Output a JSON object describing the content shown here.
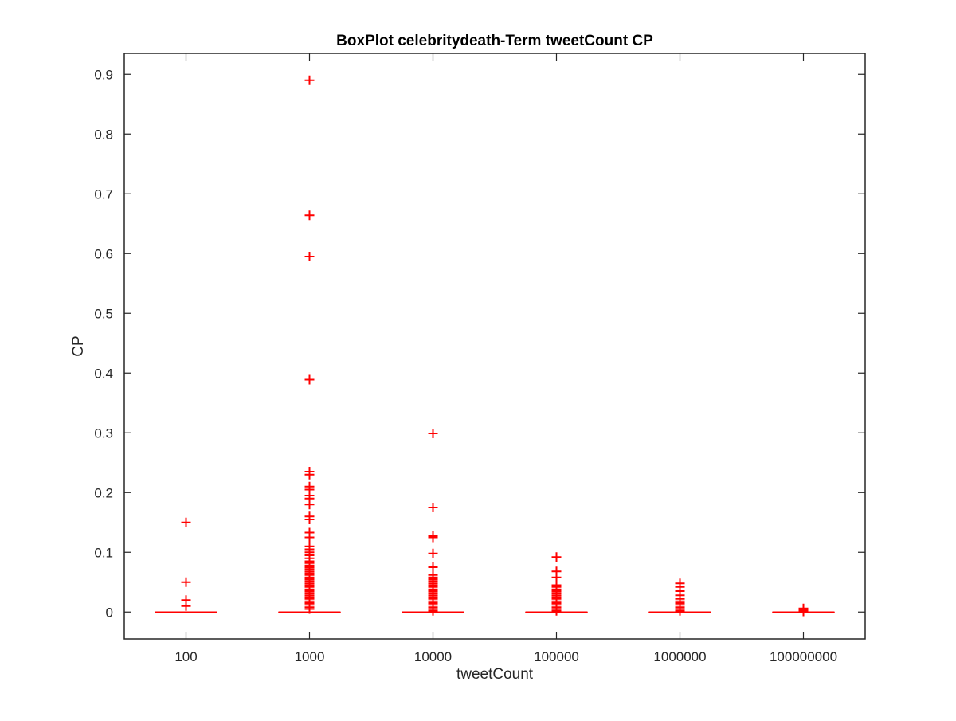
{
  "chart_data": {
    "type": "box",
    "title": "BoxPlot celebritydeath-Term tweetCount CP",
    "xlabel": "tweetCount",
    "ylabel": "CP",
    "ylim": [
      -0.045,
      0.935
    ],
    "yticks": [
      0,
      0.1,
      0.2,
      0.3,
      0.4,
      0.5,
      0.6,
      0.7,
      0.8,
      0.9
    ],
    "ytick_labels": [
      "0",
      "0.1",
      "0.2",
      "0.3",
      "0.4",
      "0.5",
      "0.6",
      "0.7",
      "0.8",
      "0.9"
    ],
    "categories": [
      "100",
      "1000",
      "10000",
      "100000",
      "1000000",
      "100000000"
    ],
    "grid": false,
    "color": "#ff0000",
    "boxes": [
      {
        "category": "100",
        "median": 0,
        "q1": 0,
        "q3": 0,
        "whisker_low": 0,
        "whisker_high": 0,
        "outliers": [
          0.15,
          0.05,
          0.02,
          0.01
        ]
      },
      {
        "category": "1000",
        "median": 0,
        "q1": 0,
        "q3": 0,
        "whisker_low": 0,
        "whisker_high": 0,
        "outliers": [
          0.89,
          0.664,
          0.595,
          0.389,
          0.235,
          0.23,
          0.21,
          0.205,
          0.195,
          0.19,
          0.18,
          0.16,
          0.155,
          0.133,
          0.125,
          0.11,
          0.105,
          0.1,
          0.095,
          0.09,
          0.085,
          0.082,
          0.078,
          0.075,
          0.072,
          0.068,
          0.065,
          0.062,
          0.058,
          0.055,
          0.052,
          0.048,
          0.045,
          0.042,
          0.038,
          0.035,
          0.032,
          0.028,
          0.025,
          0.022,
          0.018,
          0.015,
          0.012,
          0.008,
          0.005
        ]
      },
      {
        "category": "10000",
        "median": 0,
        "q1": 0,
        "q3": 0,
        "whisker_low": 0,
        "whisker_high": 0,
        "outliers": [
          0.299,
          0.175,
          0.127,
          0.125,
          0.098,
          0.075,
          0.062,
          0.058,
          0.055,
          0.052,
          0.048,
          0.045,
          0.042,
          0.038,
          0.035,
          0.032,
          0.028,
          0.025,
          0.022,
          0.018,
          0.015,
          0.012,
          0.008,
          0.005,
          0.002
        ]
      },
      {
        "category": "100000",
        "median": 0,
        "q1": 0,
        "q3": 0,
        "whisker_low": 0,
        "whisker_high": 0,
        "outliers": [
          0.092,
          0.068,
          0.058,
          0.045,
          0.042,
          0.038,
          0.035,
          0.032,
          0.028,
          0.025,
          0.022,
          0.018,
          0.015,
          0.012,
          0.008,
          0.005,
          0.002
        ]
      },
      {
        "category": "1000000",
        "median": 0,
        "q1": 0,
        "q3": 0,
        "whisker_low": 0,
        "whisker_high": 0,
        "outliers": [
          0.048,
          0.042,
          0.035,
          0.028,
          0.022,
          0.018,
          0.015,
          0.012,
          0.008,
          0.005,
          0.002
        ]
      },
      {
        "category": "100000000",
        "median": 0,
        "q1": 0,
        "q3": 0,
        "whisker_low": 0,
        "whisker_high": 0,
        "outliers": [
          0.006,
          0.003,
          0.001
        ]
      }
    ]
  }
}
